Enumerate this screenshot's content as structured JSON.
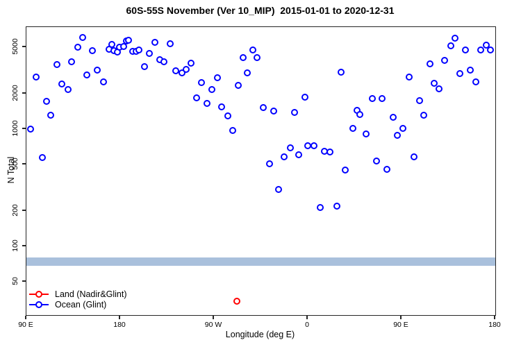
{
  "chart_data": {
    "type": "scatter",
    "title": "60S-55S November (Ver 10_MIP)  2015-01-01 to 2020-12-31",
    "xlabel": "Longitude (deg E)",
    "ylabel": "N Total",
    "x_scale": "linear",
    "y_scale": "log",
    "xlim": [
      90,
      540
    ],
    "ylim": [
      26,
      7400
    ],
    "grid": false,
    "frame_color": "#252525",
    "x_ticks": [
      {
        "value": 90,
        "label": "90 E"
      },
      {
        "value": 180,
        "label": "180"
      },
      {
        "value": 270,
        "label": "90 W"
      },
      {
        "value": 360,
        "label": "0"
      },
      {
        "value": 450,
        "label": "90 E"
      },
      {
        "value": 540,
        "label": "180"
      }
    ],
    "y_ticks": [
      {
        "value": 50,
        "label": "50"
      },
      {
        "value": 100,
        "label": "100"
      },
      {
        "value": 200,
        "label": "200"
      },
      {
        "value": 500,
        "label": "500"
      },
      {
        "value": 1000,
        "label": "1000"
      },
      {
        "value": 2000,
        "label": "2000"
      },
      {
        "value": 5000,
        "label": "5000"
      }
    ],
    "band": {
      "y_from": 68,
      "y_to": 80,
      "color": "#A9C0DC"
    },
    "legend_position": "bottom-left",
    "series": [
      {
        "name": "Land (Nadir&Glint)",
        "color": "#FF0000",
        "marker": "open-circle",
        "points": [
          [
            292,
            34
          ]
        ]
      },
      {
        "name": "Ocean (Glint)",
        "color": "#0000FF",
        "marker": "open-circle",
        "points": [
          [
            94,
            1000
          ],
          [
            99,
            2780
          ],
          [
            105,
            575
          ],
          [
            109,
            1730
          ],
          [
            113,
            1315
          ],
          [
            119,
            3540
          ],
          [
            124,
            2435
          ],
          [
            130,
            2160
          ],
          [
            133,
            3760
          ],
          [
            139,
            4975
          ],
          [
            144,
            6015
          ],
          [
            148,
            2900
          ],
          [
            153,
            4665
          ],
          [
            158,
            3190
          ],
          [
            164,
            2510
          ],
          [
            169,
            4810
          ],
          [
            172,
            5260
          ],
          [
            174,
            4645
          ],
          [
            177,
            4555
          ],
          [
            179,
            4975
          ],
          [
            183,
            5045
          ],
          [
            186,
            5645
          ],
          [
            188,
            5720
          ],
          [
            192,
            4600
          ],
          [
            195,
            4600
          ],
          [
            198,
            4710
          ],
          [
            203,
            3385
          ],
          [
            208,
            4430
          ],
          [
            213,
            5455
          ],
          [
            218,
            3890
          ],
          [
            222,
            3755
          ],
          [
            228,
            5330
          ],
          [
            233,
            3155
          ],
          [
            239,
            3020
          ],
          [
            243,
            3215
          ],
          [
            248,
            3635
          ],
          [
            253,
            1855
          ],
          [
            258,
            2495
          ],
          [
            263,
            1655
          ],
          [
            268,
            2180
          ],
          [
            273,
            2750
          ],
          [
            277,
            1555
          ],
          [
            283,
            1290
          ],
          [
            288,
            975
          ],
          [
            293,
            2370
          ],
          [
            298,
            4060
          ],
          [
            302,
            3010
          ],
          [
            307,
            4750
          ],
          [
            311,
            4050
          ],
          [
            317,
            1528
          ],
          [
            323,
            504
          ],
          [
            327,
            1420
          ],
          [
            332,
            304
          ],
          [
            337,
            577
          ],
          [
            343,
            690
          ],
          [
            347,
            1385
          ],
          [
            351,
            601
          ],
          [
            357,
            1880
          ],
          [
            360,
            720
          ],
          [
            366,
            721
          ],
          [
            372,
            216
          ],
          [
            376,
            647
          ],
          [
            381,
            638
          ],
          [
            388,
            221
          ],
          [
            392,
            3045
          ],
          [
            396,
            448
          ],
          [
            403,
            1018
          ],
          [
            407,
            1444
          ],
          [
            410,
            1331
          ],
          [
            416,
            905
          ],
          [
            422,
            1828
          ],
          [
            426,
            536
          ],
          [
            431,
            1820
          ],
          [
            436,
            455
          ],
          [
            442,
            1265
          ],
          [
            446,
            880
          ],
          [
            451,
            1018
          ],
          [
            457,
            2790
          ],
          [
            462,
            582
          ],
          [
            467,
            1740
          ],
          [
            471,
            1312
          ],
          [
            477,
            3600
          ],
          [
            481,
            2470
          ],
          [
            486,
            2210
          ],
          [
            491,
            3860
          ],
          [
            497,
            5150
          ],
          [
            501,
            5960
          ],
          [
            506,
            2985
          ],
          [
            511,
            4706
          ],
          [
            516,
            3200
          ],
          [
            521,
            2530
          ],
          [
            526,
            4750
          ],
          [
            531,
            5170
          ],
          [
            535,
            4690
          ]
        ]
      }
    ]
  }
}
